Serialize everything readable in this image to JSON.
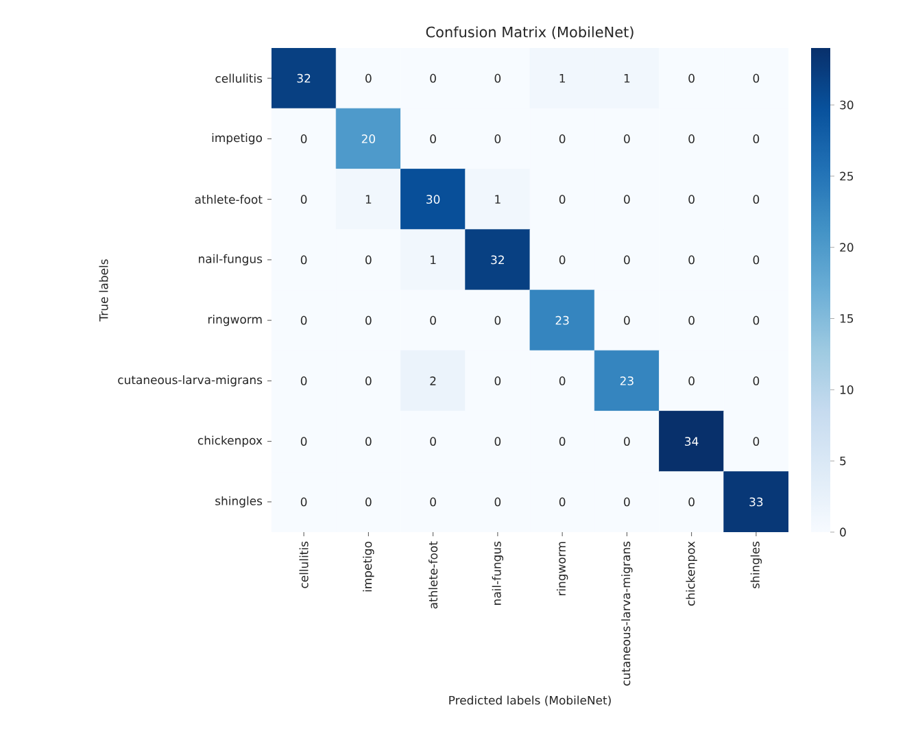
{
  "chart_data": {
    "type": "heatmap",
    "title": "Confusion Matrix (MobileNet)",
    "xlabel": "Predicted labels (MobileNet)",
    "ylabel": "True labels",
    "categories": [
      "cellulitis",
      "impetigo",
      "athlete-foot",
      "nail-fungus",
      "ringworm",
      "cutaneous-larva-migrans",
      "chickenpox",
      "shingles"
    ],
    "y_categories": [
      "cellulitis",
      "impetigo",
      "athlete-foot",
      "nail-fungus",
      "ringworm",
      "cutaneous-larva-migrans",
      "chickenpox",
      "shingles"
    ],
    "cells": [
      [
        32,
        0,
        0,
        0,
        1,
        1,
        0,
        0
      ],
      [
        0,
        20,
        0,
        0,
        0,
        0,
        0,
        0
      ],
      [
        0,
        1,
        30,
        1,
        0,
        0,
        0,
        0
      ],
      [
        0,
        0,
        1,
        32,
        0,
        0,
        0,
        0
      ],
      [
        0,
        0,
        0,
        0,
        23,
        0,
        0,
        0
      ],
      [
        0,
        0,
        2,
        0,
        0,
        23,
        0,
        0
      ],
      [
        0,
        0,
        0,
        0,
        0,
        0,
        34,
        0
      ],
      [
        0,
        0,
        0,
        0,
        0,
        0,
        0,
        33
      ]
    ],
    "clim": [
      0,
      34
    ],
    "cticks": [
      0,
      5,
      10,
      15,
      20,
      25,
      30
    ],
    "data_labels": true
  }
}
